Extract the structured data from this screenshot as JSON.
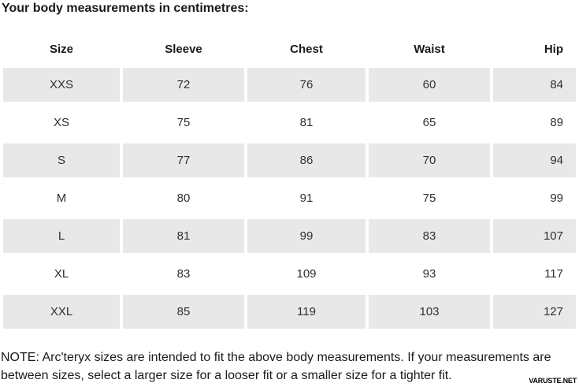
{
  "title": "Your body measurements in centimetres:",
  "chart_data": {
    "type": "table",
    "title": "Your body measurements in centimetres:",
    "columns": [
      "Size",
      "Sleeve",
      "Chest",
      "Waist",
      "Hip"
    ],
    "rows": [
      [
        "XXS",
        72,
        76,
        60,
        84
      ],
      [
        "XS",
        75,
        81,
        65,
        89
      ],
      [
        "S",
        77,
        86,
        70,
        94
      ],
      [
        "M",
        80,
        91,
        75,
        99
      ],
      [
        "L",
        81,
        99,
        83,
        107
      ],
      [
        "XL",
        83,
        109,
        93,
        117
      ],
      [
        "XXL",
        85,
        119,
        103,
        127
      ]
    ],
    "striped_row_indices": [
      0,
      2,
      4,
      6
    ],
    "layout": {
      "stripe_style": "alternating light gray starting with first data row",
      "hip_column_alignment": "right",
      "other_columns_alignment": "center"
    }
  },
  "note": "NOTE: Arc'teryx sizes are intended to fit the above body measurements. If your measurements are between sizes, select a larger size for a looser fit or a smaller size for a tighter fit.",
  "watermark": "VARUSTE.NET",
  "colors": {
    "row_stripe": "#e8e8e8",
    "background": "#ffffff",
    "text": "#1a1a1a",
    "cell_text": "#303030"
  }
}
